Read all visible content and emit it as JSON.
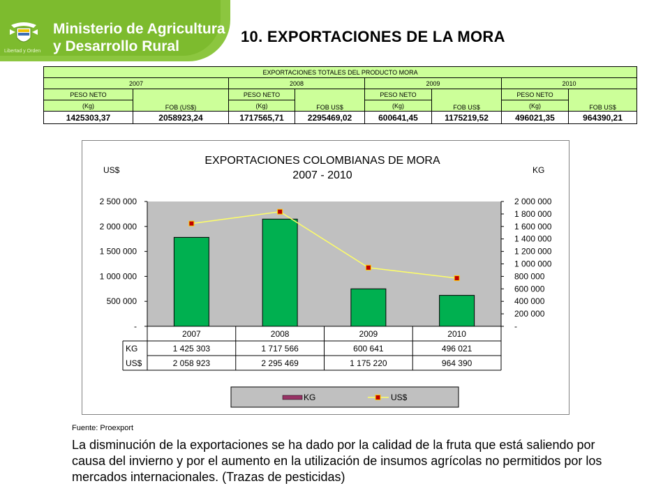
{
  "header": {
    "ministry_line1": "Ministerio de Agricultura",
    "ministry_line2": "y Desarrollo Rural",
    "motto": "Libertad y Orden",
    "page_title": "10. EXPORTACIONES DE LA MORA",
    "brand_color": "#8cc63f"
  },
  "table": {
    "title": "EXPORTACIONES TOTALES DEL PRODUCTO MORA",
    "years": [
      "2007",
      "2008",
      "2009",
      "2010"
    ],
    "peso_label": "PESO NETO",
    "kg_label": "(Kg)",
    "fob_labels": [
      "FOB (US$)",
      "FOB US$",
      "FOB US$",
      "FOB US$"
    ],
    "values": [
      "1425303,37",
      "2058923,24",
      "1717565,71",
      "2295469,02",
      "600641,45",
      "1175219,52",
      "496021,35",
      "964390,21"
    ]
  },
  "chart_data": {
    "type": "bar",
    "title_line1": "EXPORTACIONES COLOMBIANAS DE MORA",
    "title_line2": "2007 - 2010",
    "left_axis_label": "US$",
    "right_axis_label": "KG",
    "categories": [
      "2007",
      "2008",
      "2009",
      "2010"
    ],
    "series": [
      {
        "name": "KG",
        "values": [
          1425303,
          1717566,
          600641,
          496021
        ],
        "axis": "right",
        "color": "#00b050"
      },
      {
        "name": "US$",
        "values": [
          2058923,
          2295469,
          1175220,
          964390
        ],
        "axis": "left",
        "type": "line",
        "color": "#ffff66"
      }
    ],
    "left_ticks": [
      "2 500 000",
      "2 000 000",
      "1 500 000",
      "1 000 000",
      "500 000",
      "-"
    ],
    "right_ticks": [
      "2 000 000",
      "1 800 000",
      "1 600 000",
      "1 400 000",
      "1 200 000",
      "1 000 000",
      "800 000",
      "600 000",
      "400 000",
      "200 000",
      "-"
    ],
    "left_ylim": [
      0,
      2500000
    ],
    "right_ylim": [
      0,
      2000000
    ],
    "data_table": {
      "rows": [
        {
          "label": "KG",
          "values": [
            "1 425 303",
            "1 717 566",
            "600 641",
            "496 021"
          ]
        },
        {
          "label": "US$",
          "values": [
            "2 058 923",
            "2 295 469",
            "1 175 220",
            "964 390"
          ]
        }
      ]
    },
    "legend": [
      "KG",
      "US$"
    ],
    "legend_position": "bottom",
    "plot_background": "#c0c0c0"
  },
  "footer": {
    "source": "Fuente: Proexport",
    "note": "La disminución de la exportaciones se ha dado por la calidad de la fruta que está saliendo por causa del invierno y por el aumento en la utilización de insumos agrícolas no permitidos por los mercados internacionales. (Trazas de pesticidas)"
  }
}
